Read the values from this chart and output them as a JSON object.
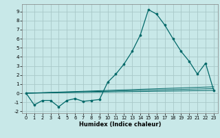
{
  "title": "",
  "xlabel": "Humidex (Indice chaleur)",
  "background_color": "#c8e8e8",
  "grid_color": "#a8c8c8",
  "line_color": "#006868",
  "xlim": [
    -0.5,
    23.5
  ],
  "ylim": [
    -2.2,
    9.8
  ],
  "xticks": [
    0,
    1,
    2,
    3,
    4,
    5,
    6,
    7,
    8,
    9,
    10,
    11,
    12,
    13,
    14,
    15,
    16,
    17,
    18,
    19,
    20,
    21,
    22,
    23
  ],
  "yticks": [
    -2,
    -1,
    0,
    1,
    2,
    3,
    4,
    5,
    6,
    7,
    8,
    9
  ],
  "main_x": [
    0,
    1,
    2,
    3,
    4,
    5,
    6,
    7,
    8,
    9,
    10,
    11,
    12,
    13,
    14,
    15,
    16,
    17,
    18,
    19,
    20,
    21,
    22,
    23
  ],
  "main_y": [
    0,
    -1.3,
    -0.8,
    -0.8,
    -1.5,
    -0.8,
    -0.6,
    -0.9,
    -0.8,
    -0.7,
    1.2,
    2.1,
    3.2,
    4.6,
    6.4,
    9.2,
    8.7,
    7.5,
    6.0,
    4.6,
    3.5,
    2.1,
    3.3,
    0.3
  ],
  "trend_lines": [
    {
      "x": [
        0,
        23
      ],
      "y": [
        0,
        0.3
      ]
    },
    {
      "x": [
        0,
        23
      ],
      "y": [
        0,
        0.5
      ]
    },
    {
      "x": [
        0,
        23
      ],
      "y": [
        0,
        0.7
      ]
    }
  ]
}
